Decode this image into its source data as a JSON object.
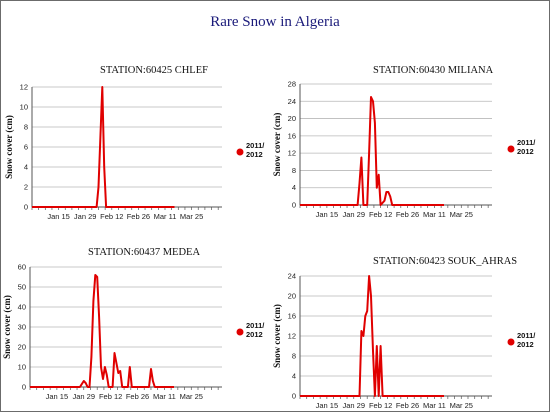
{
  "title": "Rare Snow in Algeria",
  "colors": {
    "series": "#e00000",
    "title": "#1a1a7a",
    "grid": "#b8b8b8"
  },
  "chart_data": [
    {
      "type": "line",
      "title": "STATION:60425   CHLEF",
      "ylabel": "Snow cover (cm)",
      "xlabel": "",
      "ylim": [
        0,
        12
      ],
      "yticks": [
        0,
        2,
        4,
        6,
        8,
        10,
        12
      ],
      "xlim": [
        0,
        100
      ],
      "xticks": [
        {
          "pos": 14,
          "label": "Jan 15"
        },
        {
          "pos": 28,
          "label": "Jan 29"
        },
        {
          "pos": 42,
          "label": "Feb 12"
        },
        {
          "pos": 56,
          "label": "Feb 26"
        },
        {
          "pos": 70,
          "label": "Mar 11"
        },
        {
          "pos": 84,
          "label": "Mar 25"
        }
      ],
      "grid": true,
      "legend": "right",
      "series": [
        {
          "name": "2011/ 2012",
          "points": [
            [
              0,
              0
            ],
            [
              34,
              0
            ],
            [
              35,
              2
            ],
            [
              36,
              7
            ],
            [
              37,
              12
            ],
            [
              38,
              4
            ],
            [
              39,
              0
            ],
            [
              75,
              0
            ]
          ]
        }
      ]
    },
    {
      "type": "line",
      "title": "STATION:60430   MILIANA",
      "ylabel": "Snow cover (cm)",
      "xlabel": "",
      "ylim": [
        0,
        28
      ],
      "yticks": [
        0,
        4,
        8,
        12,
        16,
        20,
        24,
        28
      ],
      "xlim": [
        0,
        100
      ],
      "xticks": [
        {
          "pos": 14,
          "label": "Jan 15"
        },
        {
          "pos": 28,
          "label": "Jan 29"
        },
        {
          "pos": 42,
          "label": "Feb 12"
        },
        {
          "pos": 56,
          "label": "Feb 26"
        },
        {
          "pos": 70,
          "label": "Mar 11"
        },
        {
          "pos": 84,
          "label": "Mar 25"
        }
      ],
      "grid": true,
      "legend": "right",
      "series": [
        {
          "name": "2011/ 2012",
          "points": [
            [
              0,
              0
            ],
            [
              30,
              0
            ],
            [
              31,
              5
            ],
            [
              32,
              11
            ],
            [
              33,
              0
            ],
            [
              35,
              0
            ],
            [
              36,
              12
            ],
            [
              37,
              25
            ],
            [
              38,
              24
            ],
            [
              39,
              19
            ],
            [
              40,
              4
            ],
            [
              41,
              7
            ],
            [
              42,
              0
            ],
            [
              44,
              1
            ],
            [
              45,
              3
            ],
            [
              46,
              3
            ],
            [
              47,
              2
            ],
            [
              48,
              0
            ],
            [
              75,
              0
            ]
          ]
        }
      ]
    },
    {
      "type": "line",
      "title": "STATION:60437   MEDEA",
      "ylabel": "Snow cover (cm)",
      "xlabel": "",
      "ylim": [
        0,
        60
      ],
      "yticks": [
        0,
        10,
        20,
        30,
        40,
        50,
        60
      ],
      "xlim": [
        0,
        100
      ],
      "xticks": [
        {
          "pos": 14,
          "label": "Jan 15"
        },
        {
          "pos": 28,
          "label": "Jan 29"
        },
        {
          "pos": 42,
          "label": "Feb 12"
        },
        {
          "pos": 56,
          "label": "Feb 26"
        },
        {
          "pos": 70,
          "label": "Mar 11"
        },
        {
          "pos": 84,
          "label": "Mar 25"
        }
      ],
      "grid": true,
      "legend": "right",
      "series": [
        {
          "name": "2011/ 2012",
          "points": [
            [
              0,
              0
            ],
            [
              26,
              0
            ],
            [
              28,
              3
            ],
            [
              29,
              2
            ],
            [
              30,
              0
            ],
            [
              31,
              0
            ],
            [
              32,
              15
            ],
            [
              33,
              43
            ],
            [
              34,
              56
            ],
            [
              35,
              55
            ],
            [
              36,
              35
            ],
            [
              37,
              10
            ],
            [
              38,
              4
            ],
            [
              39,
              10
            ],
            [
              40,
              6
            ],
            [
              41,
              0
            ],
            [
              43,
              0
            ],
            [
              44,
              17
            ],
            [
              45,
              12
            ],
            [
              46,
              7
            ],
            [
              47,
              8
            ],
            [
              48,
              0
            ],
            [
              51,
              0
            ],
            [
              52,
              10
            ],
            [
              53,
              0
            ],
            [
              62,
              0
            ],
            [
              63,
              9
            ],
            [
              64,
              3
            ],
            [
              65,
              0
            ],
            [
              75,
              0
            ]
          ]
        }
      ]
    },
    {
      "type": "line",
      "title": "STATION:60423   SOUK_AHRAS",
      "ylabel": "Snow cover (cm)",
      "xlabel": "",
      "ylim": [
        0,
        24
      ],
      "yticks": [
        0,
        4,
        8,
        12,
        16,
        20,
        24
      ],
      "xlim": [
        0,
        100
      ],
      "xticks": [
        {
          "pos": 14,
          "label": "Jan 15"
        },
        {
          "pos": 28,
          "label": "Jan 29"
        },
        {
          "pos": 42,
          "label": "Feb 12"
        },
        {
          "pos": 56,
          "label": "Feb 26"
        },
        {
          "pos": 70,
          "label": "Mar 11"
        },
        {
          "pos": 84,
          "label": "Mar 25"
        }
      ],
      "grid": true,
      "legend": "right",
      "series": [
        {
          "name": "2011/ 2012",
          "points": [
            [
              0,
              0
            ],
            [
              31,
              0
            ],
            [
              32,
              13
            ],
            [
              33,
              12
            ],
            [
              34,
              16
            ],
            [
              35,
              17
            ],
            [
              36,
              24
            ],
            [
              37,
              20
            ],
            [
              38,
              9
            ],
            [
              39,
              0
            ],
            [
              40,
              10
            ],
            [
              41,
              0
            ],
            [
              42,
              10
            ],
            [
              43,
              0
            ],
            [
              75,
              0
            ]
          ]
        }
      ]
    }
  ]
}
